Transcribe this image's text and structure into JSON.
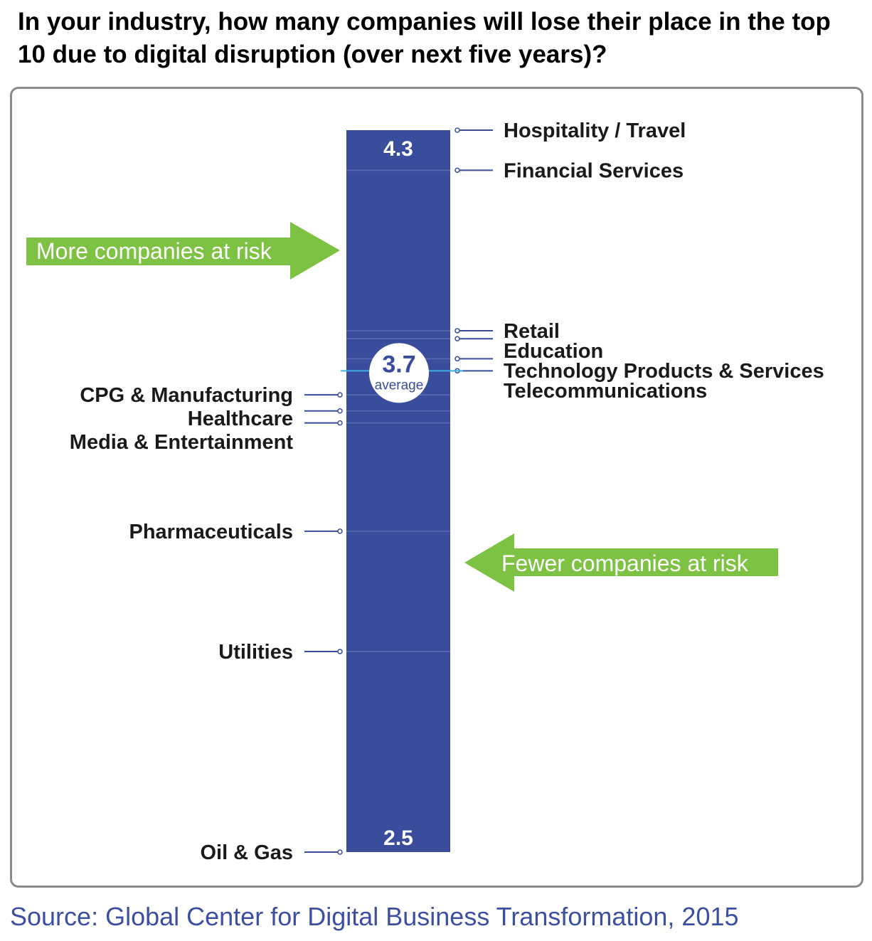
{
  "title": "In your industry, how many companies will lose their place in the top 10 due to digital disruption (over next five years)?",
  "source": "Source: Global Center for Digital Business Transformation, 2015",
  "colors": {
    "bar": "#3a4d9c",
    "arrow": "#7dc242",
    "average_line": "#3fb0e6",
    "leader": "#3a4d9c",
    "source_text": "#3c4fa0"
  },
  "chart_data": {
    "type": "bar",
    "orientation": "vertical-scale",
    "range": [
      2.5,
      4.3
    ],
    "top_label": "4.3",
    "bottom_label": "2.5",
    "average": {
      "value": 3.7,
      "value_label": "3.7",
      "caption": "average"
    },
    "arrows": [
      {
        "text": "More companies at risk",
        "direction": "right"
      },
      {
        "text": "Fewer companies at risk",
        "direction": "left"
      }
    ],
    "industries": [
      {
        "name": "Hospitality / Travel",
        "side": "right",
        "value": 4.3
      },
      {
        "name": "Financial Services",
        "side": "right",
        "value": 4.2
      },
      {
        "name": "Retail",
        "side": "right",
        "value": 3.8
      },
      {
        "name": "Education",
        "side": "right",
        "value": 3.78
      },
      {
        "name": "Technology Products & Services",
        "side": "right",
        "value": 3.73
      },
      {
        "name": "Telecommunications",
        "side": "right",
        "value": 3.7
      },
      {
        "name": "CPG & Manufacturing",
        "side": "left",
        "value": 3.64
      },
      {
        "name": "Healthcare",
        "side": "left",
        "value": 3.6
      },
      {
        "name": "Media & Entertainment",
        "side": "left",
        "value": 3.57
      },
      {
        "name": "Pharmaceuticals",
        "side": "left",
        "value": 3.3
      },
      {
        "name": "Utilities",
        "side": "left",
        "value": 3.0
      },
      {
        "name": "Oil & Gas",
        "side": "left",
        "value": 2.5
      }
    ]
  }
}
